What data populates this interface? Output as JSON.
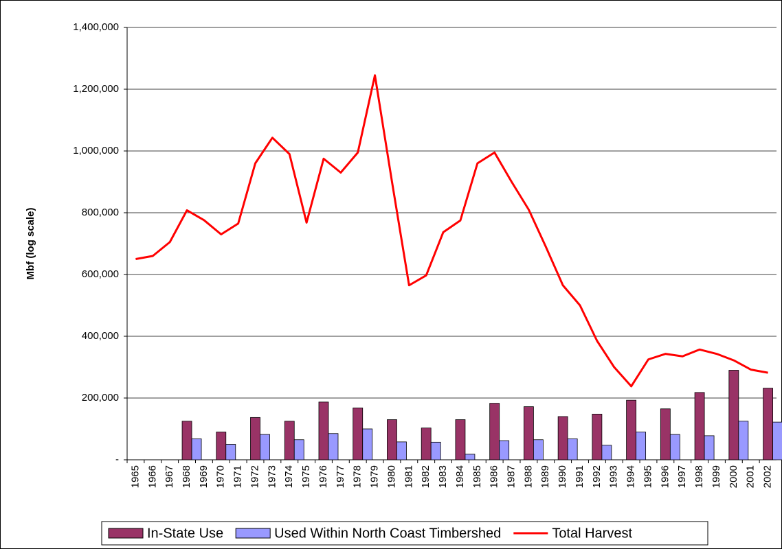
{
  "chart_data": {
    "type": "combo",
    "y_label": "Mbf (log scale)",
    "categories": [
      "1965",
      "1966",
      "1967",
      "1968",
      "1969",
      "1970",
      "1971",
      "1972",
      "1973",
      "1974",
      "1975",
      "1976",
      "1977",
      "1978",
      "1979",
      "1980",
      "1981",
      "1982",
      "1983",
      "1984",
      "1985",
      "1986",
      "1987",
      "1988",
      "1989",
      "1990",
      "1991",
      "1992",
      "1993",
      "1994",
      "1995",
      "1996",
      "1997",
      "1998",
      "1999",
      "2000",
      "2001",
      "2002"
    ],
    "series": [
      {
        "name": "In-State Use",
        "type": "bar",
        "color": "#993366",
        "values": [
          null,
          null,
          null,
          125000,
          null,
          90000,
          null,
          137000,
          null,
          125000,
          null,
          187000,
          null,
          168000,
          null,
          130000,
          null,
          103000,
          null,
          130000,
          null,
          183000,
          null,
          172000,
          null,
          140000,
          null,
          148000,
          null,
          193000,
          null,
          165000,
          null,
          218000,
          null,
          290000,
          null,
          232000
        ]
      },
      {
        "name": "Used Within North Coast Timbershed",
        "type": "bar",
        "color": "#9999ff",
        "values": [
          null,
          null,
          null,
          68000,
          null,
          50000,
          null,
          82000,
          null,
          65000,
          null,
          85000,
          null,
          100000,
          null,
          58000,
          null,
          57000,
          null,
          18000,
          null,
          62000,
          null,
          65000,
          null,
          68000,
          null,
          47000,
          null,
          90000,
          null,
          82000,
          null,
          78000,
          null,
          125000,
          null,
          122000
        ]
      },
      {
        "name": "Total Harvest",
        "type": "line",
        "color": "#ff0000",
        "values": [
          650000,
          660000,
          705000,
          808000,
          776000,
          730000,
          765000,
          960000,
          1043000,
          990000,
          768000,
          975000,
          930000,
          995000,
          1245000,
          900000,
          565000,
          597000,
          737000,
          775000,
          960000,
          995000,
          900000,
          810000,
          690000,
          565000,
          500000,
          385000,
          300000,
          238000,
          325000,
          343000,
          335000,
          357000,
          343000,
          322000,
          292000,
          282000
        ]
      }
    ],
    "ylim": [
      0,
      1400000
    ],
    "yticks": [
      {
        "value": 0,
        "label": "-"
      },
      {
        "value": 200000,
        "label": "200,000"
      },
      {
        "value": 400000,
        "label": "400,000"
      },
      {
        "value": 600000,
        "label": "600,000"
      },
      {
        "value": 800000,
        "label": "800,000"
      },
      {
        "value": 1000000,
        "label": "1,000,000"
      },
      {
        "value": 1200000,
        "label": "1,200,000"
      },
      {
        "value": 1400000,
        "label": "1,400,000"
      }
    ],
    "grid": true,
    "legend": "bottom"
  }
}
